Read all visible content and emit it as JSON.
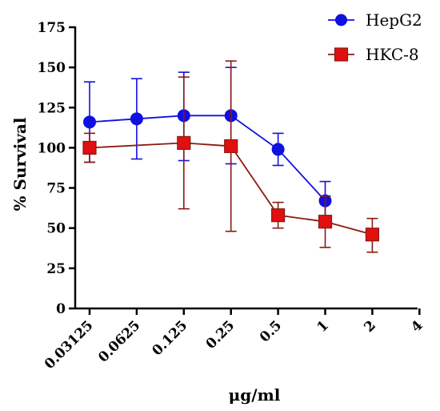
{
  "chart_data": {
    "type": "line",
    "xlabel": "μg/ml",
    "ylabel": "% Survival",
    "x_categories": [
      "0.03125",
      "0.0625",
      "0.125",
      "0.25",
      "0.5",
      "1",
      "2",
      "4"
    ],
    "ylim": [
      0,
      175
    ],
    "yticks": [
      0,
      25,
      50,
      75,
      100,
      125,
      150,
      175
    ],
    "grid": false,
    "legend_position": "top-right",
    "series": [
      {
        "name": "HepG2",
        "color": "#1010e0",
        "marker": "circle",
        "points": [
          {
            "x": "0.03125",
            "y": 116,
            "err_low": 91,
            "err_high": 141
          },
          {
            "x": "0.0625",
            "y": 118,
            "err_low": 93,
            "err_high": 143
          },
          {
            "x": "0.125",
            "y": 120,
            "err_low": 92,
            "err_high": 147
          },
          {
            "x": "0.25",
            "y": 120,
            "err_low": 90,
            "err_high": 150
          },
          {
            "x": "0.5",
            "y": 99,
            "err_low": 89,
            "err_high": 109
          },
          {
            "x": "1",
            "y": 67,
            "err_low": 55,
            "err_high": 79
          }
        ]
      },
      {
        "name": "HKC-8",
        "color": "#e01010",
        "edge_color": "#8b1a10",
        "marker": "square",
        "points": [
          {
            "x": "0.03125",
            "y": 100,
            "err_low": 91,
            "err_high": 109
          },
          {
            "x": "0.125",
            "y": 103,
            "err_low": 62,
            "err_high": 144
          },
          {
            "x": "0.25",
            "y": 101,
            "err_low": 48,
            "err_high": 154
          },
          {
            "x": "0.5",
            "y": 58,
            "err_low": 50,
            "err_high": 66
          },
          {
            "x": "1",
            "y": 54,
            "err_low": 38,
            "err_high": 70
          },
          {
            "x": "2",
            "y": 46,
            "err_low": 35,
            "err_high": 56
          }
        ]
      }
    ]
  }
}
